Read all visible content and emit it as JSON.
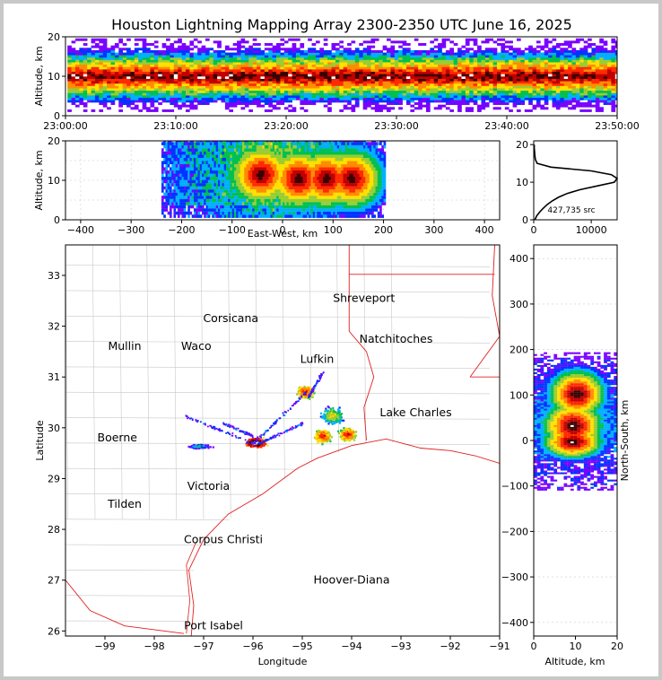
{
  "chart_data": {
    "type": "scatter",
    "title": "Houston Lightning Mapping Array 2300-2350 UTC June 16, 2025",
    "panels": {
      "time_altitude": {
        "ylabel": "Altitude, km",
        "ylim": [
          0,
          20
        ],
        "yticks": [
          "0",
          "10",
          "20"
        ],
        "xticks": [
          "23:00:00",
          "23:10:00",
          "23:20:00",
          "23:30:00",
          "23:40:00",
          "23:50:00"
        ],
        "xlim_minutes": [
          0,
          50
        ],
        "band_altitude_km": [
          3,
          16
        ],
        "core_altitude_km": [
          6,
          13
        ]
      },
      "ew_altitude": {
        "xlabel": "East-West, km",
        "ylabel": "Altitude, km",
        "xlim": [
          -430,
          430
        ],
        "ylim": [
          0,
          20
        ],
        "xticks": [
          "−400",
          "−300",
          "−200",
          "−100",
          "0",
          "100",
          "200",
          "300",
          "400"
        ],
        "yticks": [
          "0",
          "10",
          "20"
        ],
        "cells_km": [
          [
            -45,
            11
          ],
          [
            30,
            10
          ],
          [
            85,
            10
          ],
          [
            135,
            10
          ]
        ]
      },
      "altitude_histogram": {
        "xlim": [
          0,
          14500
        ],
        "ylim": [
          0,
          21
        ],
        "xticks": [
          "0",
          "10000"
        ],
        "yticks": [
          "0",
          "10",
          "20"
        ],
        "annotation": "427,735 src",
        "curve": [
          {
            "alt": 0,
            "count": 200
          },
          {
            "alt": 1,
            "count": 500
          },
          {
            "alt": 2,
            "count": 1000
          },
          {
            "alt": 3,
            "count": 1600
          },
          {
            "alt": 4,
            "count": 2300
          },
          {
            "alt": 5,
            "count": 3200
          },
          {
            "alt": 6,
            "count": 4300
          },
          {
            "alt": 7,
            "count": 5800
          },
          {
            "alt": 8,
            "count": 8000
          },
          {
            "alt": 9,
            "count": 11000
          },
          {
            "alt": 10,
            "count": 14000
          },
          {
            "alt": 11,
            "count": 14500
          },
          {
            "alt": 12,
            "count": 13500
          },
          {
            "alt": 13,
            "count": 10000
          },
          {
            "alt": 14,
            "count": 3000
          },
          {
            "alt": 15,
            "count": 600
          },
          {
            "alt": 16,
            "count": 300
          },
          {
            "alt": 17,
            "count": 200
          },
          {
            "alt": 18,
            "count": 150
          },
          {
            "alt": 19,
            "count": 100
          },
          {
            "alt": 20,
            "count": 100
          }
        ]
      },
      "plan_view": {
        "xlabel": "Longitude",
        "ylabel": "Latitude",
        "xlim": [
          -99.8,
          -91
        ],
        "ylim": [
          25.9,
          33.6
        ],
        "xticks": [
          "−99",
          "−98",
          "−97",
          "−96",
          "−95",
          "−94",
          "−93",
          "−92",
          "−91"
        ],
        "yticks": [
          "26",
          "27",
          "28",
          "29",
          "30",
          "31",
          "32",
          "33"
        ],
        "cities": [
          {
            "name": "Shreveport",
            "lon": -93.75,
            "lat": 32.55,
            "color": "#000000"
          },
          {
            "name": "Corsicana",
            "lon": -96.45,
            "lat": 32.15,
            "color": "#000000"
          },
          {
            "name": "Natchitoches",
            "lon": -93.1,
            "lat": 31.75,
            "color": "#000000"
          },
          {
            "name": "Mullin",
            "lon": -98.6,
            "lat": 31.6,
            "color": "#f08a3c"
          },
          {
            "name": "Waco",
            "lon": -97.15,
            "lat": 31.6,
            "color": "#000000"
          },
          {
            "name": "Lufkin",
            "lon": -94.7,
            "lat": 31.35,
            "color": "#000000"
          },
          {
            "name": "Lake Charles",
            "lon": -92.7,
            "lat": 30.3,
            "color": "#000000"
          },
          {
            "name": "Boerne",
            "lon": -98.75,
            "lat": 29.8,
            "color": "#000000"
          },
          {
            "name": "Victoria",
            "lon": -96.9,
            "lat": 28.85,
            "color": "#000000"
          },
          {
            "name": "Tilden",
            "lon": -98.6,
            "lat": 28.5,
            "color": "#000000"
          },
          {
            "name": "Corpus Christi",
            "lon": -96.6,
            "lat": 27.8,
            "color": "#000000"
          },
          {
            "name": "Hoover-Diana",
            "lon": -94.0,
            "lat": 27.0,
            "color": "#1a1aff"
          },
          {
            "name": "Port Isabel",
            "lon": -96.8,
            "lat": 26.1,
            "color": "#000000"
          }
        ],
        "storm_cells": [
          {
            "lon": -95.95,
            "lat": 29.72,
            "intensity": "max"
          },
          {
            "lon": -94.95,
            "lat": 30.72,
            "intensity": "high"
          },
          {
            "lon": -94.6,
            "lat": 29.85,
            "intensity": "high"
          },
          {
            "lon": -94.1,
            "lat": 29.88,
            "intensity": "high"
          },
          {
            "lon": -94.4,
            "lat": 30.25,
            "intensity": "medium"
          },
          {
            "lon": -97.1,
            "lat": 29.65,
            "intensity": "low"
          }
        ]
      },
      "ns_altitude": {
        "xlabel": "Altitude, km",
        "ylabel": "North-South, km",
        "xlim": [
          0,
          20
        ],
        "ylim": [
          -430,
          430
        ],
        "xticks": [
          "0",
          "10",
          "20"
        ],
        "yticks": [
          "−400",
          "−300",
          "−200",
          "−100",
          "0",
          "100",
          "200",
          "300",
          "400"
        ]
      }
    }
  }
}
